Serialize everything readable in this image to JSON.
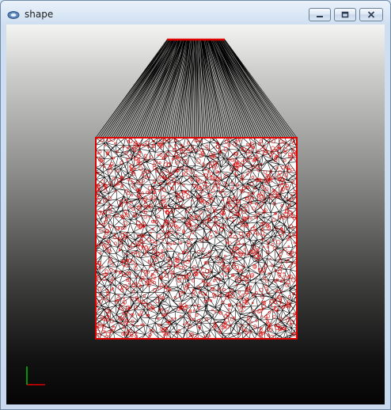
{
  "window": {
    "title": "shape",
    "icon": "app-icon",
    "buttons": {
      "minimize_icon": "minimize-icon",
      "maximize_icon": "restore-icon",
      "close_icon": "close-icon"
    }
  },
  "viewport": {
    "background_top": "#f4f4f2",
    "background_bottom": "#050505",
    "mesh_edge_color": "#000000",
    "boundary_color": "#e00000",
    "axis_colors": {
      "x": "#e00000",
      "y": "#00c000"
    }
  }
}
